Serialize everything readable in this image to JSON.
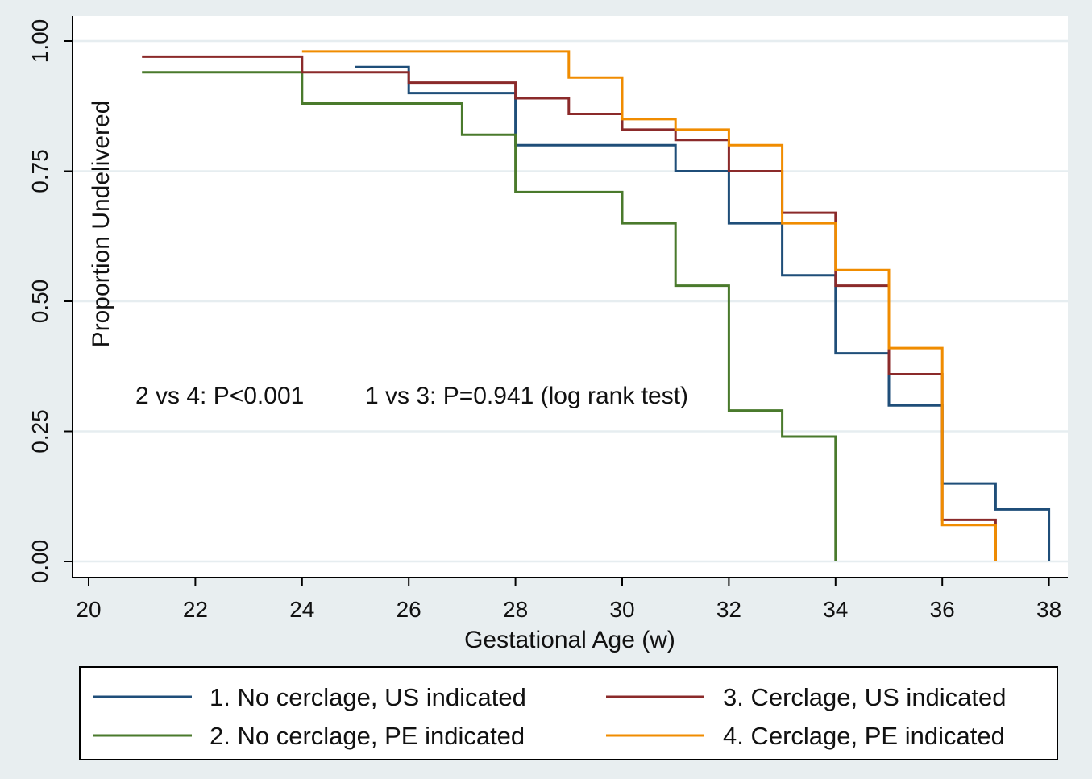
{
  "chart_data": {
    "type": "line",
    "step": true,
    "xlabel": "Gestational Age (w)",
    "ylabel": "Proportion Undelivered",
    "xlim": [
      20,
      38
    ],
    "ylim": [
      0,
      1
    ],
    "xticks": [
      "20",
      "22",
      "24",
      "26",
      "28",
      "30",
      "32",
      "34",
      "36",
      "38"
    ],
    "yticks": [
      "0.00",
      "0.25",
      "0.50",
      "0.75",
      "1.00"
    ],
    "grid": true,
    "legend_position": "bottom",
    "annotations": [
      {
        "text": "2 vs 4: P<0.001",
        "x": 20.9,
        "y": 0.31
      },
      {
        "text": "1 vs 3: P=0.941 (log rank test)",
        "x": 24.3,
        "y": 0.31
      }
    ],
    "series": [
      {
        "name": "1. No cerclage, US indicated",
        "color": "#1f4e79",
        "x": [
          25,
          26,
          28,
          31,
          32,
          33,
          34,
          35,
          36,
          37,
          38
        ],
        "y": [
          0.95,
          0.9,
          0.8,
          0.75,
          0.65,
          0.55,
          0.4,
          0.3,
          0.15,
          0.1,
          0.0
        ]
      },
      {
        "name": "2. No cerclage, PE indicated",
        "color": "#4a7a2c",
        "x": [
          21,
          24,
          27,
          28,
          30,
          31,
          32,
          33,
          34
        ],
        "y": [
          0.94,
          0.88,
          0.82,
          0.71,
          0.65,
          0.53,
          0.29,
          0.24,
          0.0
        ]
      },
      {
        "name": "3. Cerclage, US indicated",
        "color": "#8b2a2a",
        "x": [
          21,
          24,
          26,
          28,
          29,
          30,
          31,
          32,
          33,
          34,
          35,
          36,
          37
        ],
        "y": [
          0.97,
          0.94,
          0.92,
          0.89,
          0.86,
          0.83,
          0.81,
          0.75,
          0.67,
          0.53,
          0.36,
          0.08,
          0.0
        ]
      },
      {
        "name": "4. Cerclage, PE indicated",
        "color": "#f08c00",
        "x": [
          24,
          29,
          30,
          31,
          32,
          33,
          34,
          35,
          36,
          37
        ],
        "y": [
          0.98,
          0.93,
          0.85,
          0.83,
          0.8,
          0.65,
          0.56,
          0.41,
          0.07,
          0.0
        ]
      }
    ]
  }
}
